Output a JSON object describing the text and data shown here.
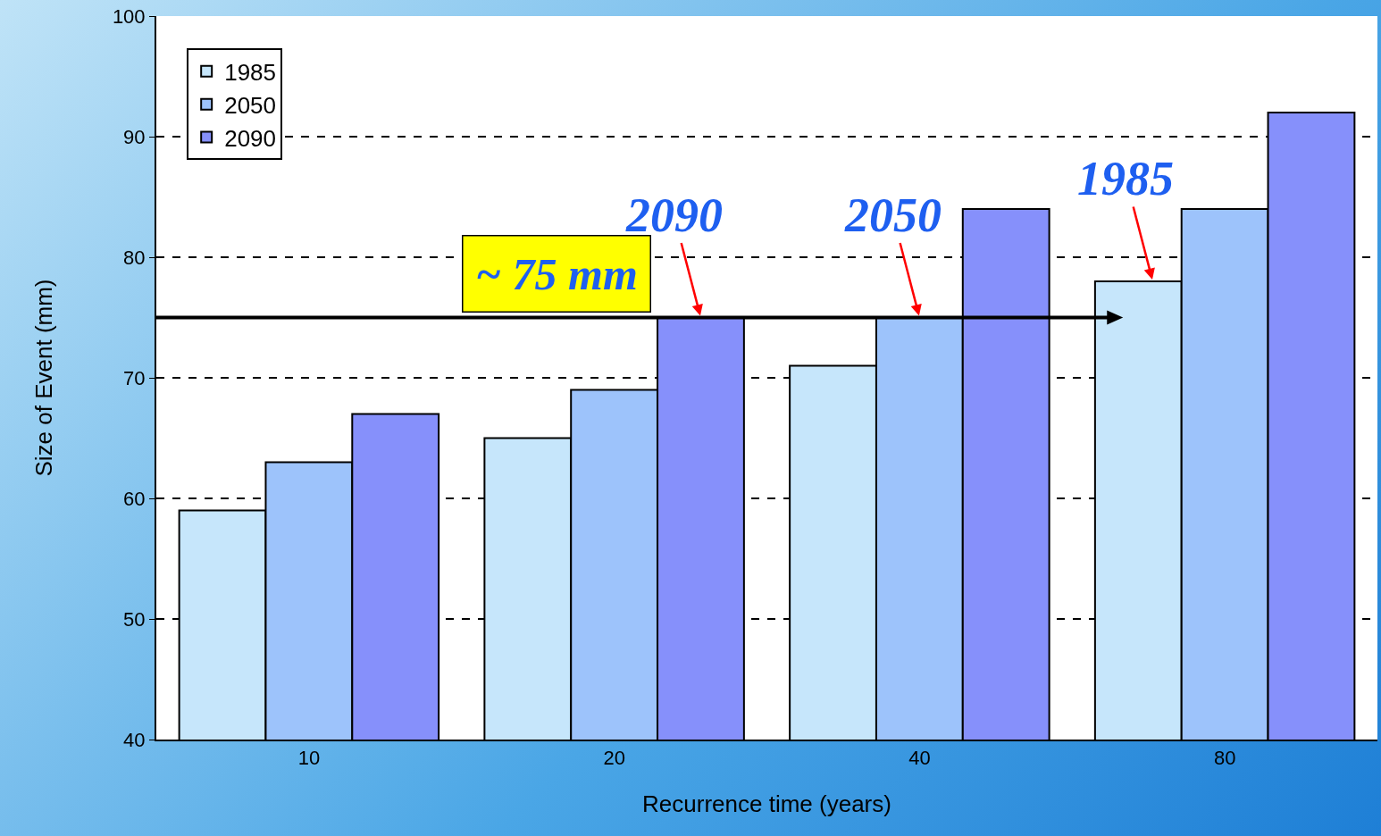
{
  "chart_data": {
    "type": "bar",
    "xlabel": "Recurrence time (years)",
    "ylabel": "Size of Event (mm)",
    "categories": [
      "10",
      "20",
      "40",
      "80"
    ],
    "series": [
      {
        "name": "1985",
        "color": "#c6e6fb",
        "values": [
          59,
          65,
          71,
          78
        ]
      },
      {
        "name": "2050",
        "color": "#9dc3fb",
        "values": [
          63,
          69,
          75,
          84
        ]
      },
      {
        "name": "2090",
        "color": "#8690fb",
        "values": [
          67,
          75,
          84,
          92
        ]
      }
    ],
    "ylim": [
      40,
      100
    ],
    "yticks": [
      40,
      50,
      60,
      70,
      80,
      90,
      100
    ],
    "grid": "y",
    "legend": "top left",
    "ref_lines": [
      {
        "axis": "y",
        "value": 75,
        "label": "~ 75 mm",
        "color": "#000000"
      }
    ],
    "annotations": [
      {
        "text": "2090",
        "x": "20",
        "y": 75
      },
      {
        "text": "2050",
        "x": "40",
        "y": 75
      },
      {
        "text": "1985",
        "y": 78
      }
    ]
  }
}
